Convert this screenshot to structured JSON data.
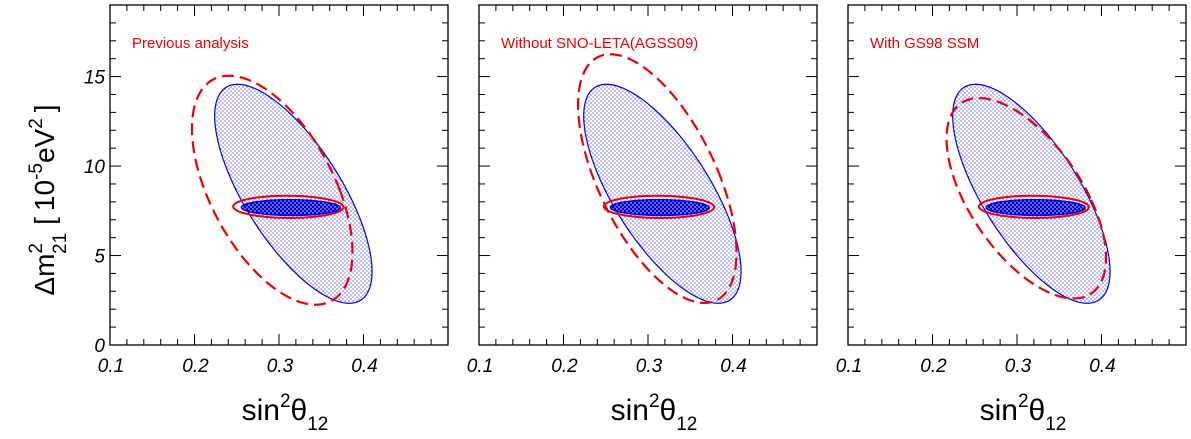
{
  "chart_data": {
    "type": "contour",
    "xlabel": {
      "base": "sin",
      "sup": "2",
      "greek": "θ",
      "sub": "12"
    },
    "ylabel": {
      "delta": "Δ",
      "base": "m",
      "sup": "2",
      "sub": "21",
      "bracket_open": "[",
      "unit_pre": "10",
      "unit_sup": "-5",
      "unit_post": "eV",
      "unit_post_sup": "2",
      "bracket_close": "]"
    },
    "xlim": [
      0.1,
      0.5
    ],
    "ylim": [
      0,
      19.0
    ],
    "xticks": [
      0.1,
      0.2,
      0.3,
      0.4
    ],
    "xtick_labels": [
      "0.1",
      "0.2",
      "0.3",
      "0.4"
    ],
    "yticks": [
      0,
      5,
      10,
      15
    ],
    "ytick_labels": [
      "0",
      "5",
      "10",
      "15"
    ],
    "colors": {
      "blue": "#0000ee",
      "red": "#ee0000",
      "fill_blue": "#0000cc"
    },
    "panels": [
      {
        "label": "Previous analysis",
        "blue_3sigma": {
          "center": [
            0.317,
            8.45
          ],
          "a": 0.0656,
          "b": 6.12,
          "tilt": -0.108
        },
        "blue_1sigma": {
          "center": [
            0.314,
            7.68
          ],
          "a": 0.0585,
          "b": 0.44,
          "tilt": -0.033
        },
        "red_3sigma": {
          "center": [
            0.292,
            8.65
          ],
          "a": 0.08,
          "b": 6.4,
          "tilt": -0.08
        },
        "red_1sigma": {
          "center": [
            0.311,
            7.72
          ],
          "a": 0.0652,
          "b": 0.62,
          "tilt": -0.03
        }
      },
      {
        "label": "Without SNO-LETA(AGSS09)",
        "blue_3sigma": {
          "center": [
            0.317,
            8.45
          ],
          "a": 0.0656,
          "b": 6.12,
          "tilt": -0.108
        },
        "blue_1sigma": {
          "center": [
            0.314,
            7.68
          ],
          "a": 0.0585,
          "b": 0.44,
          "tilt": -0.033
        },
        "red_3sigma": {
          "center": [
            0.311,
            9.3
          ],
          "a": 0.0755,
          "b": 6.95,
          "tilt": -0.08
        },
        "red_1sigma": {
          "center": [
            0.313,
            7.72
          ],
          "a": 0.0652,
          "b": 0.62,
          "tilt": -0.03
        }
      },
      {
        "label": "With GS98 SSM",
        "blue_3sigma": {
          "center": [
            0.317,
            8.45
          ],
          "a": 0.0656,
          "b": 6.12,
          "tilt": -0.108
        },
        "blue_1sigma": {
          "center": [
            0.322,
            7.68
          ],
          "a": 0.0585,
          "b": 0.44,
          "tilt": -0.033
        },
        "red_3sigma": {
          "center": [
            0.311,
            8.2
          ],
          "a": 0.076,
          "b": 5.6,
          "tilt": -0.1
        },
        "red_1sigma": {
          "center": [
            0.32,
            7.72
          ],
          "a": 0.065,
          "b": 0.62,
          "tilt": -0.03
        }
      }
    ]
  }
}
